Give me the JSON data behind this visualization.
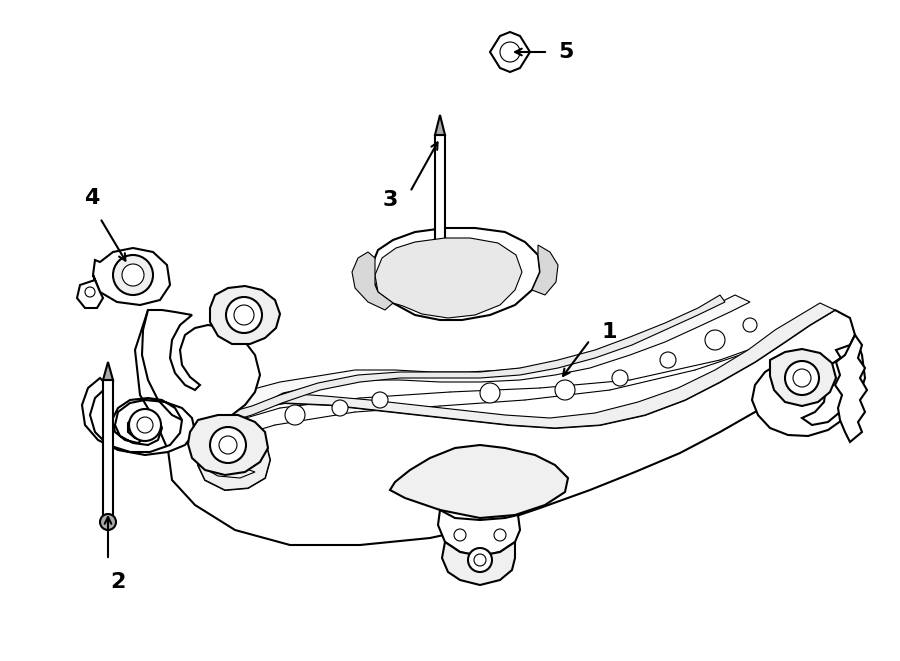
{
  "bg_color": "#ffffff",
  "line_color": "#000000",
  "lw": 1.5,
  "tlw": 0.8,
  "fig_width": 9.0,
  "fig_height": 6.61,
  "dpi": 100
}
